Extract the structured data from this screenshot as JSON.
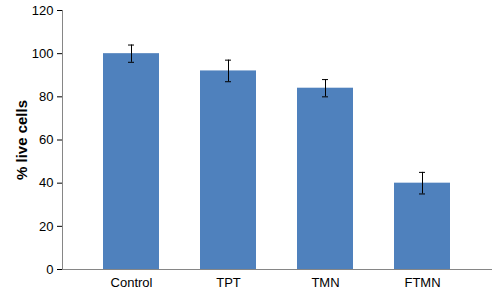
{
  "chart_data": {
    "type": "bar",
    "categories": [
      "Control",
      "TPT",
      "TMN",
      "FTMN"
    ],
    "values": [
      100,
      92,
      84,
      40
    ],
    "errors": [
      4,
      5,
      4,
      5
    ],
    "color": "#4f81bd",
    "ylabel": "% live cells",
    "ylim": [
      0,
      120
    ],
    "yticks": [
      0,
      20,
      40,
      60,
      80,
      100,
      120
    ],
    "grid": false
  }
}
